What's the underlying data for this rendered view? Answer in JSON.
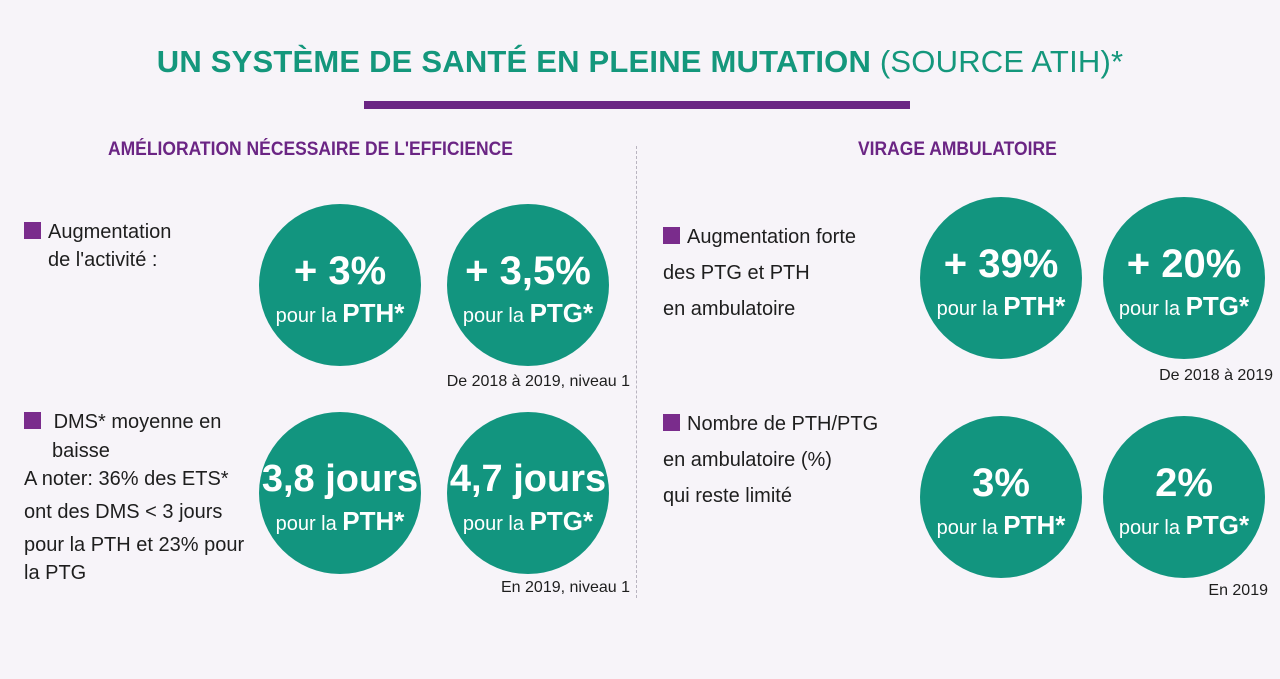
{
  "title": {
    "main": "UN SYSTÈME DE SANTÉ EN PLEINE MUTATION",
    "source": "(SOURCE ATIH)*"
  },
  "left": {
    "heading": "AMÉLIORATION NÉCESSAIRE DE L'EFFICIENCE",
    "block1": {
      "lines": [
        "Augmentation",
        "de l'activité :"
      ],
      "circles": [
        {
          "value": "+ 3%",
          "prefix": "pour la",
          "target": "PTH*"
        },
        {
          "value": "+ 3,5%",
          "prefix": "pour la",
          "target": "PTG*"
        }
      ],
      "note": "De 2018 à 2019, niveau 1"
    },
    "block2": {
      "lines": [
        "DMS* moyenne en",
        "baisse",
        "A noter: 36% des ETS*",
        "ont des DMS < 3 jours",
        "pour la PTH  et 23% pour",
        "la  PTG"
      ],
      "circles": [
        {
          "value": "3,8 jours",
          "prefix": "pour la",
          "target": "PTH*"
        },
        {
          "value": "4,7 jours",
          "prefix": "pour la",
          "target": "PTG*"
        }
      ],
      "note": "En 2019, niveau 1"
    }
  },
  "right": {
    "heading": "VIRAGE AMBULATOIRE",
    "block1": {
      "lines": [
        "Augmentation forte",
        "des PTG et PTH",
        "en ambulatoire"
      ],
      "circles": [
        {
          "value": "+ 39%",
          "prefix": "pour la",
          "target": "PTH*"
        },
        {
          "value": "+ 20%",
          "prefix": "pour la",
          "target": "PTG*"
        }
      ],
      "note": "De 2018 à 2019"
    },
    "block2": {
      "lines": [
        "Nombre de PTH/PTG",
        "en ambulatoire (%)",
        "qui reste limité"
      ],
      "circles": [
        {
          "value": "3%",
          "prefix": "pour la",
          "target": "PTH*"
        },
        {
          "value": "2%",
          "prefix": "pour la",
          "target": "PTG*"
        }
      ],
      "note": "En 2019"
    }
  },
  "colors": {
    "title": "#14977c",
    "accent": "#6b2584",
    "circle": "#12957f",
    "background": "#f7f4f9"
  }
}
